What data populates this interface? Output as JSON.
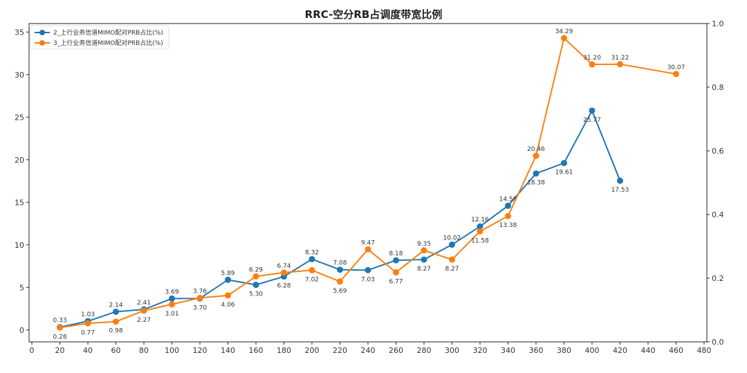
{
  "chart_data": {
    "type": "line",
    "title": "RRC-空分RB占调度带宽比例",
    "xlim": [
      -2,
      482
    ],
    "ylim": [
      -1.4,
      36
    ],
    "y2lim": [
      0,
      1
    ],
    "xticks": [
      0,
      20,
      40,
      60,
      80,
      100,
      120,
      140,
      160,
      180,
      200,
      220,
      240,
      260,
      280,
      300,
      320,
      340,
      360,
      380,
      400,
      420,
      440,
      460,
      480
    ],
    "yticks": [
      0,
      5,
      10,
      15,
      20,
      25,
      30,
      35
    ],
    "y2ticks": [
      "0.0",
      "0.2",
      "0.4",
      "0.6",
      "0.8",
      "1.0"
    ],
    "grid": false,
    "legend": "top-left",
    "series": [
      {
        "name": "2_上行业务信道MIMO配对PRB占比(%)",
        "color": "#1f77b4",
        "x": [
          20,
          40,
          60,
          80,
          100,
          120,
          140,
          160,
          180,
          200,
          220,
          240,
          260,
          280,
          300,
          320,
          340,
          360,
          380,
          400,
          420
        ],
        "values": [
          0.33,
          1.03,
          2.14,
          2.41,
          3.69,
          3.7,
          5.89,
          5.3,
          6.28,
          8.32,
          7.08,
          7.03,
          8.18,
          8.27,
          10.02,
          12.16,
          14.59,
          18.38,
          19.61,
          25.77,
          17.53
        ]
      },
      {
        "name": "3_上行业务信道MIMO配对PRB占比(%)",
        "color": "#ff7f0e",
        "x": [
          20,
          40,
          60,
          80,
          100,
          120,
          140,
          160,
          180,
          200,
          220,
          240,
          260,
          280,
          300,
          320,
          340,
          360,
          380,
          400,
          420,
          460
        ],
        "values": [
          0.28,
          0.77,
          0.98,
          2.27,
          3.01,
          3.76,
          4.06,
          6.29,
          6.74,
          7.02,
          5.69,
          9.47,
          6.77,
          9.35,
          8.27,
          11.58,
          13.38,
          20.46,
          34.29,
          31.2,
          31.22,
          30.07
        ]
      }
    ]
  }
}
